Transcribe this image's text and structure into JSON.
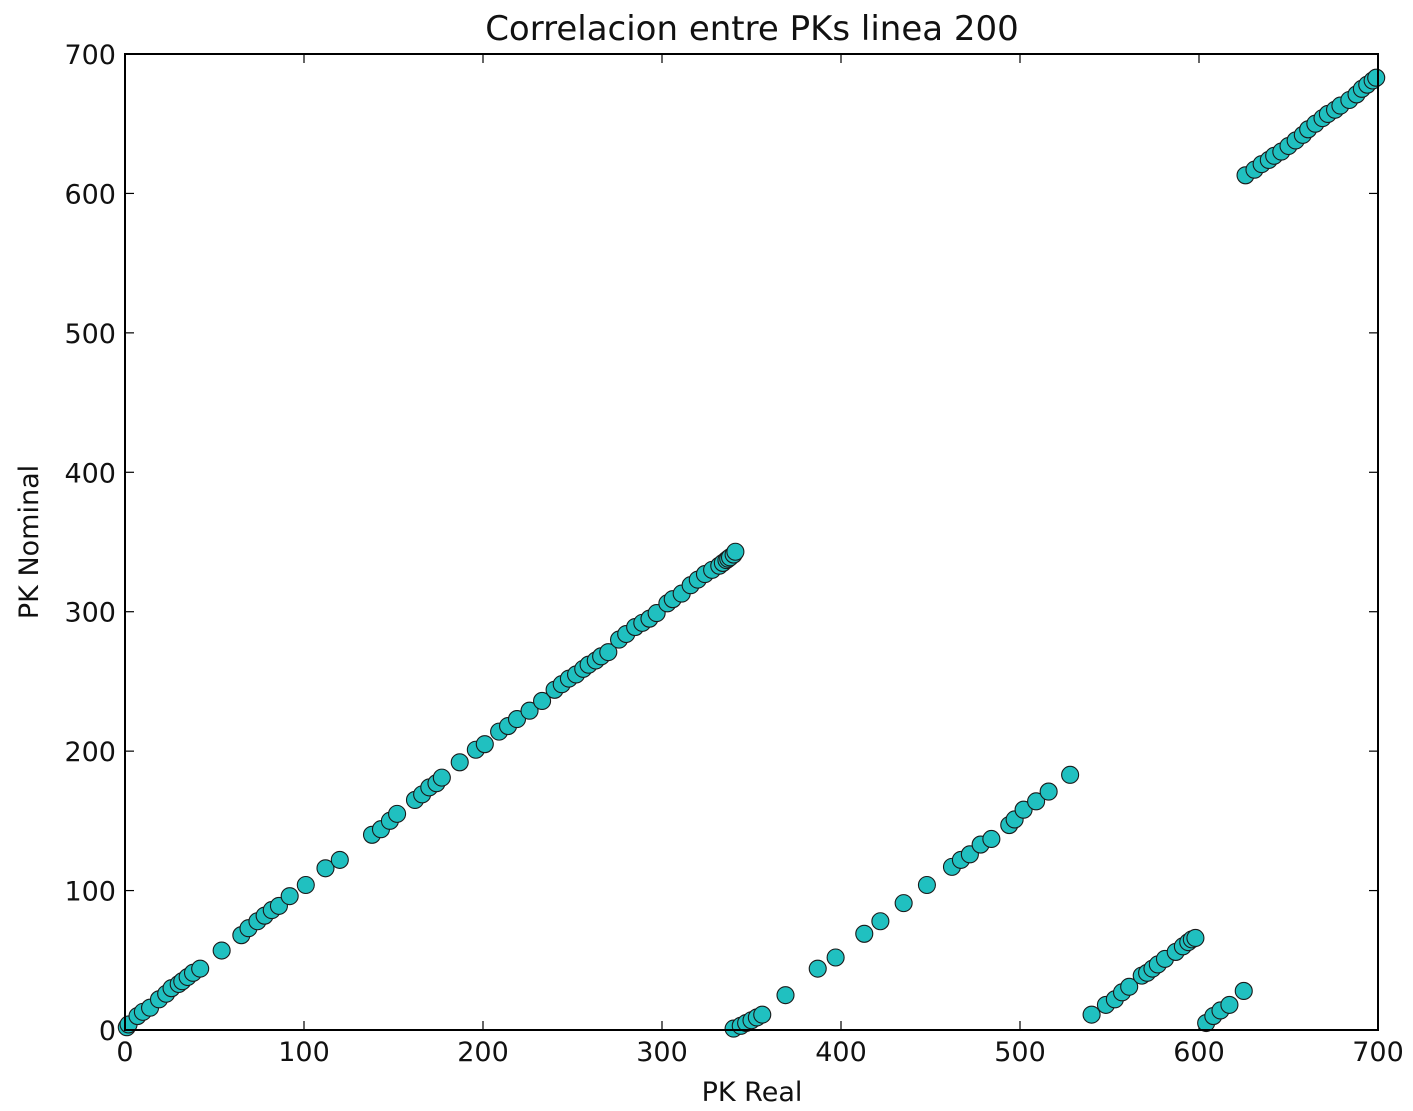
{
  "chart_data": {
    "type": "scatter",
    "title": "Correlacion entre PKs linea 200",
    "xlabel": "PK Real",
    "ylabel": "PK Nominal",
    "xlim": [
      0,
      700
    ],
    "ylim": [
      0,
      700
    ],
    "xticks": [
      "0",
      "100",
      "200",
      "300",
      "400",
      "500",
      "600",
      "700"
    ],
    "yticks": [
      "0",
      "100",
      "200",
      "300",
      "400",
      "500",
      "600",
      "700"
    ],
    "grid": false,
    "legend": "none",
    "marker_color": "#20c0c0",
    "marker_edge_color": "#1a1a1a",
    "series": [
      {
        "points": [
          [
            1,
            2
          ],
          [
            2,
            4
          ],
          [
            7,
            10
          ],
          [
            10,
            13
          ],
          [
            14,
            16
          ],
          [
            19,
            22
          ],
          [
            23,
            26
          ],
          [
            26,
            30
          ],
          [
            30,
            33
          ],
          [
            32,
            35
          ],
          [
            35,
            38
          ],
          [
            38,
            41
          ],
          [
            42,
            44
          ],
          [
            54,
            57
          ],
          [
            65,
            68
          ],
          [
            69,
            73
          ],
          [
            74,
            78
          ],
          [
            78,
            82
          ],
          [
            82,
            86
          ],
          [
            86,
            89
          ],
          [
            92,
            96
          ],
          [
            101,
            104
          ],
          [
            112,
            116
          ],
          [
            120,
            122
          ],
          [
            138,
            140
          ],
          [
            143,
            144
          ],
          [
            148,
            150
          ],
          [
            152,
            155
          ],
          [
            162,
            165
          ],
          [
            166,
            169
          ],
          [
            170,
            174
          ],
          [
            174,
            177
          ],
          [
            177,
            181
          ],
          [
            187,
            192
          ],
          [
            196,
            201
          ],
          [
            201,
            205
          ],
          [
            209,
            214
          ],
          [
            214,
            218
          ],
          [
            219,
            223
          ],
          [
            226,
            229
          ],
          [
            233,
            236
          ],
          [
            240,
            244
          ],
          [
            244,
            248
          ],
          [
            248,
            252
          ],
          [
            252,
            255
          ],
          [
            256,
            259
          ],
          [
            259,
            262
          ],
          [
            263,
            265
          ],
          [
            266,
            268
          ],
          [
            270,
            271
          ],
          [
            276,
            280
          ],
          [
            280,
            284
          ],
          [
            285,
            289
          ],
          [
            289,
            292
          ],
          [
            293,
            295
          ],
          [
            297,
            299
          ],
          [
            303,
            306
          ],
          [
            306,
            309
          ],
          [
            311,
            313
          ],
          [
            316,
            319
          ],
          [
            320,
            323
          ],
          [
            324,
            327
          ],
          [
            328,
            330
          ],
          [
            332,
            333
          ],
          [
            334,
            335
          ],
          [
            336,
            337
          ],
          [
            337,
            338
          ],
          [
            338,
            339
          ],
          [
            340,
            341
          ],
          [
            341,
            343
          ],
          [
            340,
            1
          ],
          [
            344,
            3
          ],
          [
            347,
            5
          ],
          [
            350,
            7
          ],
          [
            353,
            9
          ],
          [
            356,
            11
          ],
          [
            369,
            25
          ],
          [
            387,
            44
          ],
          [
            397,
            52
          ],
          [
            413,
            69
          ],
          [
            422,
            78
          ],
          [
            435,
            91
          ],
          [
            448,
            104
          ],
          [
            462,
            117
          ],
          [
            467,
            122
          ],
          [
            472,
            126
          ],
          [
            478,
            133
          ],
          [
            484,
            137
          ],
          [
            494,
            147
          ],
          [
            497,
            151
          ],
          [
            502,
            158
          ],
          [
            509,
            164
          ],
          [
            516,
            171
          ],
          [
            528,
            183
          ],
          [
            540,
            11
          ],
          [
            548,
            18
          ],
          [
            553,
            22
          ],
          [
            557,
            27
          ],
          [
            561,
            31
          ],
          [
            568,
            39
          ],
          [
            571,
            41
          ],
          [
            574,
            44
          ],
          [
            577,
            47
          ],
          [
            581,
            51
          ],
          [
            587,
            56
          ],
          [
            591,
            60
          ],
          [
            594,
            63
          ],
          [
            596,
            65
          ],
          [
            598,
            66
          ],
          [
            604,
            5
          ],
          [
            608,
            10
          ],
          [
            612,
            14
          ],
          [
            617,
            18
          ],
          [
            625,
            28
          ],
          [
            626,
            613
          ],
          [
            631,
            617
          ],
          [
            635,
            621
          ],
          [
            639,
            624
          ],
          [
            642,
            627
          ],
          [
            646,
            630
          ],
          [
            650,
            634
          ],
          [
            654,
            638
          ],
          [
            658,
            642
          ],
          [
            661,
            646
          ],
          [
            665,
            650
          ],
          [
            669,
            654
          ],
          [
            672,
            657
          ],
          [
            676,
            660
          ],
          [
            679,
            663
          ],
          [
            684,
            667
          ],
          [
            688,
            671
          ],
          [
            691,
            675
          ],
          [
            694,
            678
          ],
          [
            697,
            681
          ],
          [
            699,
            683
          ]
        ]
      }
    ]
  }
}
